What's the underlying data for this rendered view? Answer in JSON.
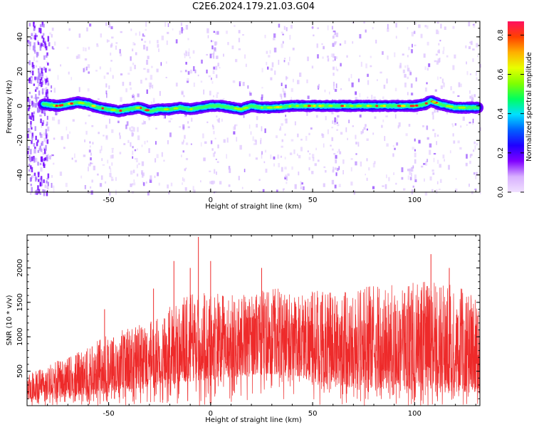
{
  "title": "C2E6.2024.179.21.03.G04",
  "chart_data": [
    {
      "type": "heatmap",
      "xlabel": "Height of straight line (km)",
      "ylabel": "Frequency (Hz)",
      "xlim": [
        -90,
        132
      ],
      "ylim": [
        -50,
        49
      ],
      "xticks": [
        -50,
        0,
        50,
        100
      ],
      "yticks": [
        -40,
        -20,
        0,
        20,
        40
      ],
      "colorbar": {
        "label": "Normalized spectral amplitude",
        "range": [
          0.0,
          0.87
        ],
        "ticks": [
          0.0,
          0.2,
          0.4,
          0.6,
          0.8
        ],
        "colors": [
          "#f0e0ff",
          "#d8b0ff",
          "#8000ff",
          "#2000ff",
          "#0060ff",
          "#00e0ff",
          "#00ff60",
          "#80ff00",
          "#e8ff00",
          "#ffb000",
          "#ff4000",
          "#ff1060"
        ]
      },
      "ridge": {
        "description_points_x": [
          -82,
          -75,
          -70,
          -65,
          -60,
          -55,
          -50,
          -45,
          -40,
          -35,
          -30,
          -25,
          -20,
          -15,
          -10,
          -5,
          0,
          5,
          10,
          15,
          20,
          25,
          30,
          40,
          50,
          60,
          70,
          80,
          90,
          100,
          105,
          108,
          112,
          116,
          120,
          125,
          131
        ],
        "frequency_hz": [
          1,
          0,
          1,
          2,
          1,
          -1,
          -2,
          -3,
          -2,
          -1,
          -3,
          -2,
          -2,
          -1,
          -2,
          -1,
          0,
          0,
          -1,
          -2,
          0,
          -1,
          -1,
          0,
          0,
          0,
          0,
          0,
          0,
          0,
          1,
          3,
          1,
          0,
          -1,
          -1,
          -1
        ]
      },
      "grid": false
    },
    {
      "type": "line",
      "xlabel": "Height of straight line (km)",
      "ylabel": "SNR (10 * v/v)",
      "xlim": [
        -90,
        132
      ],
      "ylim": [
        0,
        2480
      ],
      "xticks": [
        -50,
        0,
        50,
        100
      ],
      "yticks": [
        500,
        1000,
        1500,
        2000
      ],
      "series": [
        {
          "color": "#ee2a2a",
          "envelope_x": [
            -90,
            -80,
            -70,
            -60,
            -50,
            -40,
            -30,
            -20,
            -10,
            0,
            10,
            20,
            30,
            40,
            50,
            60,
            70,
            80,
            90,
            100,
            110,
            120,
            131
          ],
          "typical_max": [
            450,
            600,
            700,
            850,
            1050,
            1150,
            1200,
            1450,
            1650,
            1650,
            1600,
            1650,
            1750,
            1650,
            1700,
            1700,
            1700,
            1750,
            1750,
            1800,
            1800,
            1750,
            1650
          ],
          "typical_min": [
            80,
            100,
            120,
            150,
            180,
            220,
            250,
            300,
            350,
            400,
            400,
            450,
            450,
            400,
            350,
            300,
            250,
            250,
            200,
            250,
            250,
            200,
            200
          ],
          "peaks": [
            [
              -75,
              650
            ],
            [
              -52,
              1400
            ],
            [
              -28,
              1700
            ],
            [
              -18,
              2100
            ],
            [
              -10,
              2000
            ],
            [
              -6,
              2450
            ],
            [
              0,
              2100
            ],
            [
              25,
              2000
            ],
            [
              108,
              2200
            ],
            [
              117,
              2000
            ]
          ]
        }
      ],
      "grid": false
    }
  ]
}
